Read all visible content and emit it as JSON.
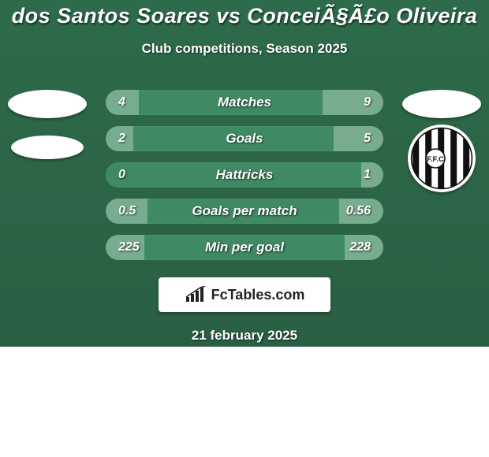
{
  "title": "dos Santos Soares vs ConceiÃ§Ã£o Oliveira",
  "subtitle": "Club competitions, Season 2025",
  "date_text": "21 february 2025",
  "footer_brand": "FcTables.com",
  "colors": {
    "card_bg_top": "#2d6b4a",
    "card_bg_bottom": "#2a5f43",
    "row_bg": "#3f8963",
    "fill_bg": "#78ac8f",
    "text": "#ffffff",
    "footer_box_bg": "#ffffff",
    "footer_text": "#222222"
  },
  "rows": [
    {
      "label": "Matches",
      "left": "4",
      "right": "9",
      "fill_left_pct": 12,
      "fill_right_pct": 22
    },
    {
      "label": "Goals",
      "left": "2",
      "right": "5",
      "fill_left_pct": 10,
      "fill_right_pct": 18
    },
    {
      "label": "Hattricks",
      "left": "0",
      "right": "1",
      "fill_left_pct": 0,
      "fill_right_pct": 8
    },
    {
      "label": "Goals per match",
      "left": "0.5",
      "right": "0.56",
      "fill_left_pct": 15,
      "fill_right_pct": 16
    },
    {
      "label": "Min per goal",
      "left": "225",
      "right": "228",
      "fill_left_pct": 14,
      "fill_right_pct": 14
    }
  ],
  "icons": {
    "left_flag": "oval-white",
    "left_club": "oval-white-small",
    "right_flag": "oval-white",
    "right_club": "figueirense-bw-stripes"
  }
}
